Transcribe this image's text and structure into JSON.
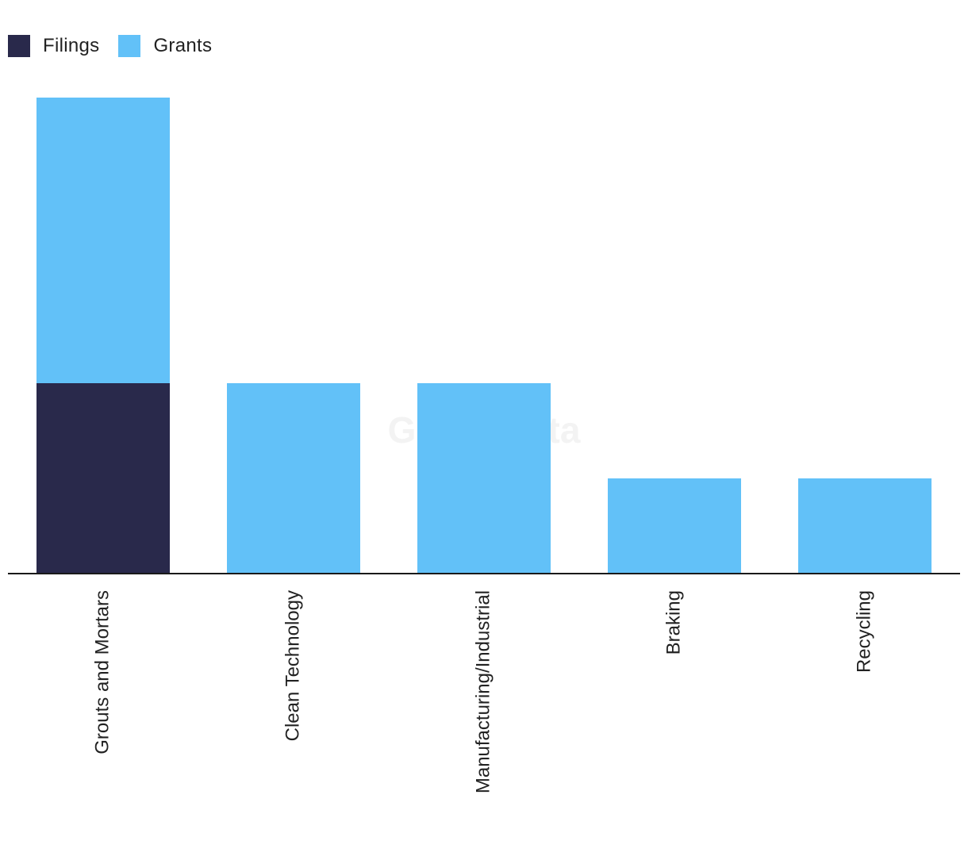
{
  "legend": {
    "items": [
      {
        "label": "Filings",
        "color": "#29294b"
      },
      {
        "label": "Grants",
        "color": "#62c1f8"
      }
    ]
  },
  "watermark": "GlobalData",
  "chart_data": {
    "type": "bar",
    "stacked": true,
    "categories": [
      "Grouts and Mortars",
      "Clean Technology",
      "Manufacturing/Industrial",
      "Braking",
      "Recycling"
    ],
    "series": [
      {
        "name": "Filings",
        "color": "#29294b",
        "values": [
          2,
          0,
          0,
          0,
          0
        ]
      },
      {
        "name": "Grants",
        "color": "#62c1f8",
        "values": [
          3,
          2,
          2,
          1,
          1
        ]
      }
    ],
    "ylim": [
      0,
      5
    ],
    "grid": false,
    "legend_position": "top-left",
    "xlabel": "",
    "ylabel": ""
  }
}
